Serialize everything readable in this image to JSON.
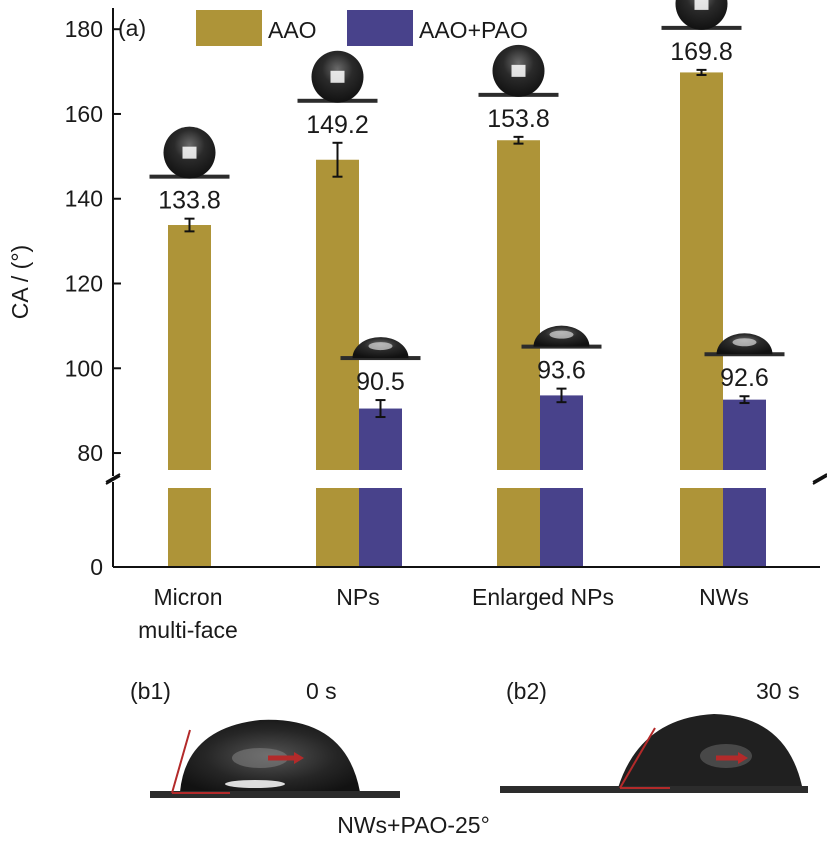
{
  "panel_a_label": "(a)",
  "chart_data": {
    "type": "bar",
    "ylabel": "CA / (°)",
    "ylim_upper": [
      76,
      185
    ],
    "ylim_lower": [
      0,
      22
    ],
    "broken_axis": true,
    "y_ticks_upper": [
      80,
      100,
      120,
      140,
      160,
      180
    ],
    "y_ticks_lower": [
      0
    ],
    "categories": [
      "Micron multi-face",
      "NPs",
      "Enlarged NPs",
      "NWs"
    ],
    "category_labels": [
      [
        "Micron",
        "multi-face"
      ],
      [
        "NPs"
      ],
      [
        "Enlarged NPs"
      ],
      [
        "NWs"
      ]
    ],
    "series": [
      {
        "name": "AAO",
        "color": "#ae9438",
        "values": [
          133.8,
          149.2,
          153.8,
          169.8
        ],
        "errors": [
          1.5,
          4.0,
          0.8,
          0.6
        ],
        "labels": [
          "133.8",
          "149.2",
          "153.8",
          "169.8"
        ]
      },
      {
        "name": "AAO+PAO",
        "color": "#48428b",
        "values": [
          null,
          90.5,
          93.6,
          92.6
        ],
        "errors": [
          null,
          2.0,
          1.6,
          0.8
        ],
        "labels": [
          "",
          "90.5",
          "93.6",
          "92.6"
        ]
      }
    ],
    "legend_position": "top",
    "grid": false
  },
  "panel_b1": {
    "label": "(b1)",
    "time": "0 s"
  },
  "panel_b2": {
    "label": "(b2)",
    "time": "30 s"
  },
  "caption": "NWs+PAO-25°",
  "colors": {
    "arrow": "#b32a2a",
    "droplet": "#222222",
    "substrate": "#2c2c2c"
  }
}
